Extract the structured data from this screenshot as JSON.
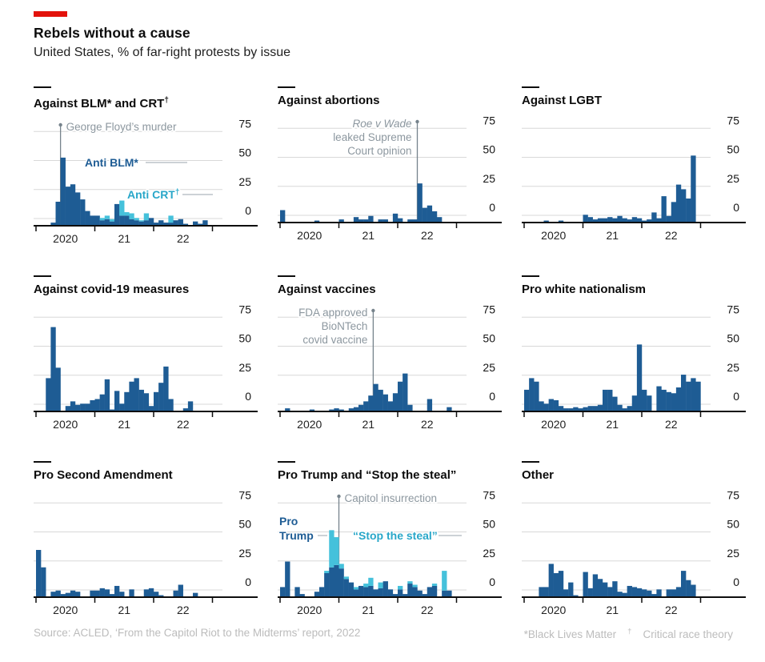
{
  "header": {
    "title": "Rebels without a cause",
    "subtitle": "United States, % of far-right protests by issue"
  },
  "footer": {
    "source": "Source: ACLED, ‘From the Capitol Riot to the Midterms’ report, 2022",
    "note1": "*Black Lives Matter",
    "note2_dagger": "†",
    "note2": "Critical race theory"
  },
  "colors": {
    "accent_red": "#E3120B",
    "blue": "#1E5C94",
    "cyan": "#45C1DB",
    "cyan_text": "#29A7C9",
    "grid": "#D8D8D8",
    "axis": "#0E0E0E",
    "ann_line": "#76838C",
    "ann_text": "#8C979F",
    "leader": "#9AA5AD"
  },
  "axis": {
    "y_ticks": [
      0,
      25,
      50,
      75
    ],
    "x_tick_months": [
      0,
      12,
      24,
      36
    ],
    "x_labels": [
      {
        "text": "2020",
        "month": 6
      },
      {
        "text": "21",
        "month": 18
      },
      {
        "text": "22",
        "month": 30
      }
    ],
    "x_range": "Jan 2020 – Dec 2022, monthly",
    "ylim": [
      0,
      80
    ],
    "grid_on": true
  },
  "chart_data": [
    {
      "type": "bar",
      "stacked": true,
      "title_parts": [
        {
          "t": "Against BLM* and CRT"
        },
        {
          "t": "†",
          "sup": true
        }
      ],
      "series": [
        {
          "name": "Anti BLM*",
          "color": "blue",
          "values": [
            0,
            0,
            0,
            2,
            20,
            58,
            33,
            35,
            28,
            22,
            12,
            8,
            8,
            4,
            5,
            3,
            18,
            8,
            8,
            5,
            4,
            3,
            4,
            6,
            2,
            4,
            2,
            2,
            4,
            5,
            1,
            0,
            3,
            1,
            4,
            0
          ]
        },
        {
          "name": "Anti CRT†",
          "color": "cyan",
          "values": [
            0,
            0,
            0,
            0,
            0,
            0,
            0,
            0,
            0,
            0,
            0,
            0,
            0,
            2,
            3,
            2,
            0,
            13,
            3,
            5,
            2,
            1,
            6,
            0,
            0,
            0,
            0,
            6,
            0,
            0,
            0,
            0,
            0,
            0,
            0,
            0
          ]
        }
      ],
      "annotations": [
        {
          "lines": [
            "George Floyd’s murder"
          ],
          "month": 5,
          "side": "right"
        }
      ],
      "labels": [
        {
          "t": "Anti BLM*",
          "color": "blue",
          "x": 64,
          "y": 62,
          "lead": [
            140,
            57,
            192
          ]
        },
        {
          "t": "Anti CRT",
          "sup": "†",
          "color": "cyan_text",
          "x": 117,
          "y": 102,
          "lead": [
            186,
            97,
            224
          ]
        }
      ]
    },
    {
      "type": "bar",
      "title_parts": [
        {
          "t": "Against abortions"
        }
      ],
      "series": [
        {
          "name": "Against abortions",
          "color": "blue",
          "values": [
            10,
            0,
            0,
            0,
            0,
            0,
            0,
            1,
            0,
            0,
            0,
            0,
            2,
            0,
            0,
            4,
            2,
            2,
            5,
            0,
            2,
            2,
            0,
            7,
            3,
            0,
            2,
            2,
            33,
            12,
            14,
            9,
            4,
            0,
            0,
            0
          ]
        }
      ],
      "annotations": [
        {
          "lines": [
            "Roe v Wade",
            "leaked Supreme",
            "Court opinion"
          ],
          "month": 28,
          "side": "left",
          "italic_first": true
        }
      ],
      "labels": []
    },
    {
      "type": "bar",
      "title_parts": [
        {
          "t": "Against LGBT"
        }
      ],
      "series": [
        {
          "name": "Against LGBT",
          "color": "blue",
          "values": [
            0,
            0,
            0,
            0,
            1,
            0,
            0,
            1,
            0,
            0,
            0,
            0,
            6,
            4,
            2,
            3,
            3,
            4,
            3,
            5,
            3,
            2,
            4,
            3,
            1,
            2,
            8,
            3,
            22,
            5,
            17,
            32,
            28,
            20,
            57,
            0
          ]
        }
      ],
      "annotations": [],
      "labels": []
    },
    {
      "type": "bar",
      "title_parts": [
        {
          "t": "Against covid-19 measures"
        }
      ],
      "series": [
        {
          "name": "Against covid-19 measures",
          "color": "blue",
          "values": [
            0,
            0,
            28,
            72,
            37,
            0,
            4,
            8,
            5,
            6,
            6,
            9,
            10,
            14,
            27,
            1,
            17,
            6,
            16,
            25,
            28,
            18,
            15,
            4,
            16,
            24,
            38,
            10,
            0,
            0,
            2,
            8,
            0,
            0,
            0,
            0
          ]
        }
      ],
      "annotations": [],
      "labels": []
    },
    {
      "type": "bar",
      "title_parts": [
        {
          "t": "Against vaccines"
        }
      ],
      "series": [
        {
          "name": "Against vaccines",
          "color": "blue",
          "values": [
            0,
            2,
            0,
            0,
            0,
            0,
            1,
            0,
            0,
            0,
            1,
            2,
            1,
            0,
            2,
            3,
            5,
            8,
            13,
            23,
            18,
            14,
            8,
            15,
            25,
            32,
            5,
            0,
            0,
            0,
            10,
            0,
            0,
            0,
            3,
            0
          ]
        }
      ],
      "annotations": [
        {
          "lines": [
            "FDA approved",
            "BioNTech",
            "covid vaccine"
          ],
          "month": 19,
          "side": "left"
        }
      ],
      "labels": []
    },
    {
      "type": "bar",
      "title_parts": [
        {
          "t": "Pro white nationalism"
        }
      ],
      "series": [
        {
          "name": "Pro white nationalism",
          "color": "blue",
          "values": [
            18,
            28,
            25,
            8,
            6,
            10,
            9,
            4,
            2,
            2,
            3,
            2,
            3,
            4,
            4,
            5,
            18,
            18,
            12,
            5,
            2,
            4,
            13,
            57,
            18,
            13,
            0,
            21,
            18,
            16,
            15,
            20,
            31,
            25,
            28,
            25
          ]
        }
      ],
      "annotations": [],
      "labels": []
    },
    {
      "type": "bar",
      "title_parts": [
        {
          "t": "Pro Second Amendment"
        }
      ],
      "series": [
        {
          "name": "Pro Second Amendment",
          "color": "blue",
          "values": [
            40,
            25,
            0,
            4,
            5,
            2,
            3,
            5,
            4,
            0,
            0,
            5,
            5,
            7,
            6,
            2,
            9,
            4,
            0,
            6,
            0,
            0,
            6,
            7,
            4,
            1,
            0,
            0,
            5,
            10,
            0,
            0,
            3,
            0,
            0,
            0
          ]
        }
      ],
      "annotations": [],
      "labels": []
    },
    {
      "type": "bar",
      "stacked": true,
      "title_parts": [
        {
          "t": "Pro Trump and “Stop the steal”"
        }
      ],
      "series": [
        {
          "name": "Pro Trump",
          "color": "blue",
          "values": [
            8,
            30,
            0,
            8,
            2,
            0,
            0,
            4,
            8,
            20,
            25,
            27,
            24,
            15,
            12,
            6,
            9,
            8,
            9,
            6,
            7,
            13,
            6,
            2,
            6,
            2,
            11,
            8,
            5,
            2,
            8,
            9,
            0,
            5,
            5,
            0
          ]
        },
        {
          "name": "“Stop the steal”",
          "color": "cyan",
          "values": [
            0,
            0,
            0,
            0,
            0,
            0,
            0,
            0,
            0,
            2,
            32,
            24,
            4,
            2,
            0,
            2,
            0,
            3,
            7,
            0,
            5,
            0,
            0,
            0,
            3,
            0,
            2,
            2,
            0,
            0,
            0,
            2,
            0,
            17,
            0,
            0
          ]
        }
      ],
      "annotations": [
        {
          "lines": [
            "Capitol insurrection"
          ],
          "month": 12,
          "side": "right"
        }
      ],
      "labels": [
        {
          "t": "Pro",
          "color": "blue",
          "x": 2,
          "y": 46
        },
        {
          "t": "Trump",
          "color": "blue",
          "x": 2,
          "y": 64,
          "lead": [
            50,
            59,
            62
          ]
        },
        {
          "t": "“Stop the steal”",
          "color": "cyan_text",
          "x": 94,
          "y": 64,
          "lead": [
            201,
            59,
            230
          ]
        }
      ]
    },
    {
      "type": "bar",
      "title_parts": [
        {
          "t": "Other"
        }
      ],
      "series": [
        {
          "name": "Other",
          "color": "blue",
          "values": [
            0,
            0,
            0,
            8,
            8,
            28,
            20,
            22,
            6,
            12,
            1,
            0,
            21,
            7,
            19,
            15,
            12,
            8,
            13,
            4,
            3,
            9,
            8,
            7,
            6,
            5,
            2,
            6,
            0,
            6,
            6,
            8,
            22,
            14,
            10,
            0
          ]
        }
      ],
      "annotations": [],
      "labels": []
    }
  ]
}
